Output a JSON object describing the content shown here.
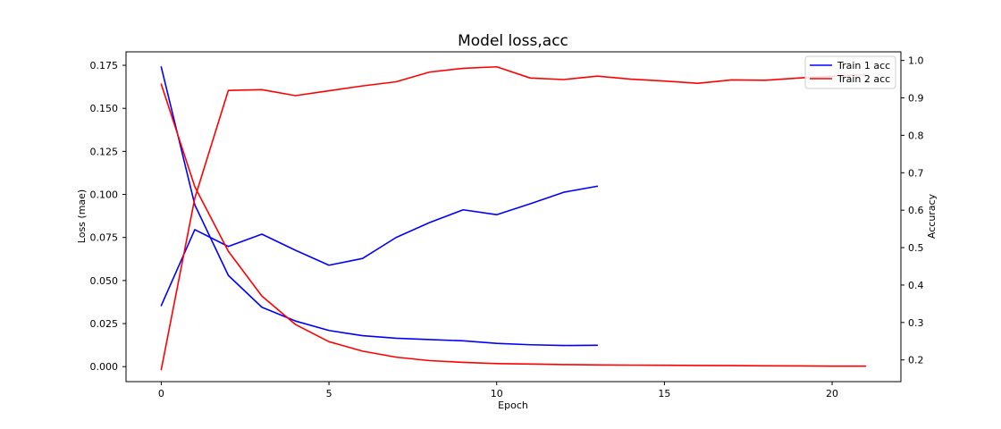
{
  "chart_data": {
    "type": "line",
    "title": "Model loss,acc",
    "xlabel": "Epoch",
    "ylabel_left": "Loss (mae)",
    "ylabel_right": "Accuracy",
    "xlim": [
      -1.05,
      22.05
    ],
    "ylim_left": [
      -0.0087,
      0.1828
    ],
    "ylim_right": [
      0.142,
      1.023
    ],
    "x_ticks": [
      0,
      5,
      10,
      15,
      20
    ],
    "y_ticks_left": [
      0.0,
      0.025,
      0.05,
      0.075,
      0.1,
      0.125,
      0.15,
      0.175
    ],
    "y_ticks_right": [
      0.2,
      0.3,
      0.4,
      0.5,
      0.6,
      0.7,
      0.8,
      0.9,
      1.0
    ],
    "legend": {
      "position": "top-right",
      "entries": [
        "Train 1 acc",
        "Train 2 acc"
      ]
    },
    "colors": {
      "train1": "#0000ff",
      "train2": "#ff0000"
    },
    "series": [
      {
        "name": "Train 1 acc",
        "axis": "right",
        "color": "#0000ff",
        "x": [
          0,
          1,
          2,
          3,
          4,
          5,
          6,
          7,
          8,
          9,
          10,
          11,
          12,
          13
        ],
        "values": [
          0.345,
          0.548,
          0.503,
          0.536,
          0.493,
          0.453,
          0.471,
          0.527,
          0.567,
          0.601,
          0.588,
          0.617,
          0.648,
          0.664
        ]
      },
      {
        "name": "",
        "axis": "left",
        "color": "#0000ff",
        "x": [
          0,
          1,
          2,
          3,
          4,
          5,
          6,
          7,
          8,
          9,
          10,
          11,
          12,
          13
        ],
        "values": [
          0.174,
          0.094,
          0.053,
          0.0345,
          0.0265,
          0.021,
          0.018,
          0.0165,
          0.0157,
          0.015,
          0.0135,
          0.0127,
          0.0123,
          0.0124
        ]
      },
      {
        "name": "Train 2 acc",
        "axis": "right",
        "color": "#ff0000",
        "x": [
          0,
          1,
          2,
          3,
          4,
          5,
          6,
          7,
          8,
          9,
          10,
          11,
          12,
          13,
          14,
          15,
          16,
          17,
          18,
          19,
          20,
          21
        ],
        "values": [
          0.174,
          0.632,
          0.92,
          0.922,
          0.906,
          0.919,
          0.932,
          0.943,
          0.969,
          0.979,
          0.983,
          0.953,
          0.949,
          0.958,
          0.95,
          0.945,
          0.939,
          0.948,
          0.947,
          0.953,
          0.958,
          0.962
        ]
      },
      {
        "name": "",
        "axis": "left",
        "color": "#ff0000",
        "x": [
          0,
          1,
          2,
          3,
          4,
          5,
          6,
          7,
          8,
          9,
          10,
          11,
          12,
          13,
          14,
          15,
          16,
          17,
          18,
          19,
          20,
          21
        ],
        "values": [
          0.164,
          0.1045,
          0.067,
          0.041,
          0.0245,
          0.0145,
          0.009,
          0.0055,
          0.0035,
          0.0025,
          0.0018,
          0.0015,
          0.0012,
          0.001,
          0.0009,
          0.0008,
          0.0007,
          0.0006,
          0.0005,
          0.0004,
          0.0003,
          0.0003
        ]
      }
    ]
  }
}
